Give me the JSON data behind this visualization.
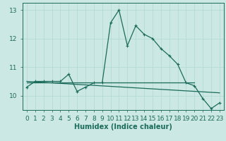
{
  "xlabel": "Humidex (Indice chaleur)",
  "background_color": "#cce8e4",
  "line_color": "#1a6b5a",
  "grid_color": "#b0d8d0",
  "x_values": [
    0,
    1,
    2,
    3,
    4,
    5,
    6,
    7,
    8,
    9,
    10,
    11,
    12,
    13,
    14,
    15,
    16,
    17,
    18,
    19,
    20,
    21,
    22,
    23
  ],
  "y_main": [
    10.3,
    10.5,
    10.5,
    10.5,
    10.5,
    10.75,
    10.15,
    10.3,
    10.45,
    10.45,
    12.55,
    13.0,
    11.75,
    12.45,
    12.15,
    12.0,
    11.65,
    11.4,
    11.1,
    10.45,
    10.35,
    9.9,
    9.55,
    9.75
  ],
  "y_trend_start": 10.5,
  "y_trend_end": 10.1,
  "y_flat_start": 10.45,
  "y_flat_end": 10.45,
  "ylim": [
    9.5,
    13.25
  ],
  "xlim": [
    -0.5,
    23.5
  ],
  "yticks": [
    10,
    11,
    12,
    13
  ],
  "xticks": [
    0,
    1,
    2,
    3,
    4,
    5,
    6,
    7,
    8,
    9,
    10,
    11,
    12,
    13,
    14,
    15,
    16,
    17,
    18,
    19,
    20,
    21,
    22,
    23
  ],
  "xlabel_fontsize": 7,
  "tick_fontsize": 6.5
}
